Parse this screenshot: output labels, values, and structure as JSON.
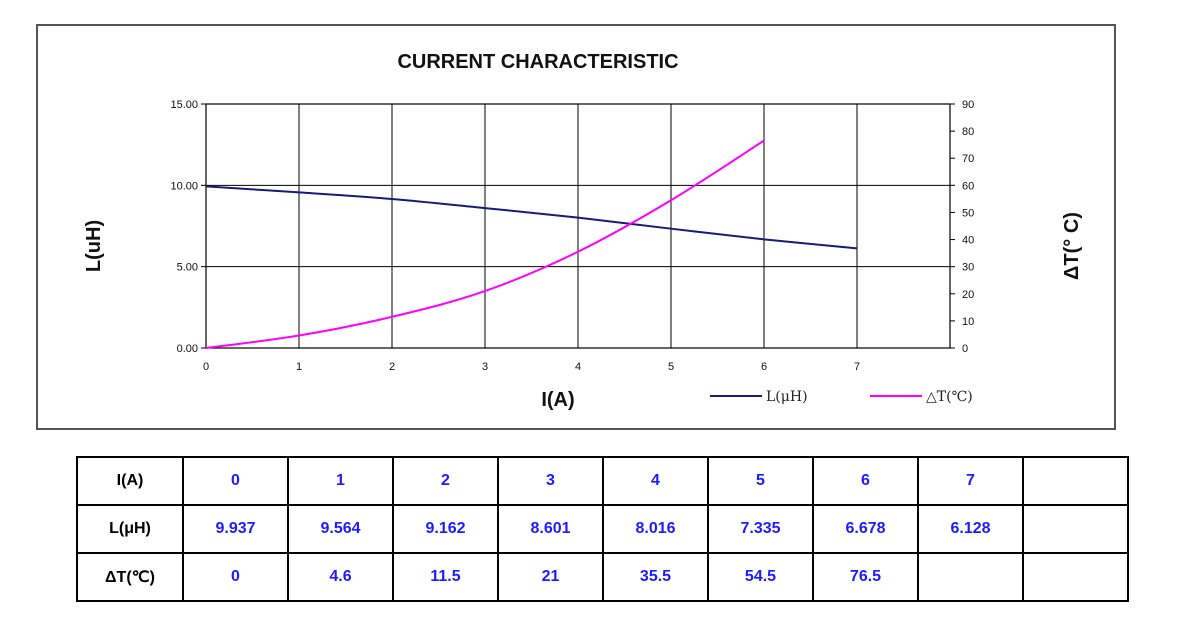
{
  "chart_data": {
    "type": "line",
    "title": "CURRENT CHARACTERISTIC",
    "xlabel": "I(A)",
    "ylabel_left": "L(uH)",
    "ylabel_right": "ΔT(° C)",
    "x_ticks": [
      "0",
      "1",
      "2",
      "3",
      "4",
      "5",
      "6",
      "7"
    ],
    "y_left_ticks": [
      "0.00",
      "5.00",
      "10.00",
      "15.00"
    ],
    "y_right_ticks": [
      "0",
      "10",
      "20",
      "30",
      "40",
      "50",
      "60",
      "70",
      "80",
      "90"
    ],
    "xlim": [
      0,
      8
    ],
    "ylim_left": [
      0,
      15
    ],
    "ylim_right": [
      0,
      90
    ],
    "grid": true,
    "legend_position": "bottom-right",
    "series": [
      {
        "name": "L(μH)",
        "axis": "left",
        "color": "#1a1a7a",
        "x": [
          0,
          1,
          2,
          3,
          4,
          5,
          6,
          7
        ],
        "values": [
          9.937,
          9.564,
          9.162,
          8.601,
          8.016,
          7.335,
          6.678,
          6.128
        ]
      },
      {
        "name": "△T(℃)",
        "axis": "right",
        "color": "#ff00ff",
        "x": [
          0,
          1,
          2,
          3,
          4,
          5,
          6
        ],
        "values": [
          0,
          4.6,
          11.5,
          21,
          35.5,
          54.5,
          76.5
        ]
      }
    ]
  },
  "table": {
    "rows": [
      {
        "header": "I(A)",
        "cells": [
          "0",
          "1",
          "2",
          "3",
          "4",
          "5",
          "6",
          "7",
          ""
        ]
      },
      {
        "header": "L(μH)",
        "cells": [
          "9.937",
          "9.564",
          "9.162",
          "8.601",
          "8.016",
          "7.335",
          "6.678",
          "6.128",
          ""
        ]
      },
      {
        "header": "ΔT(℃)",
        "cells": [
          "0",
          "4.6",
          "11.5",
          "21",
          "35.5",
          "54.5",
          "76.5",
          "",
          ""
        ]
      }
    ]
  }
}
